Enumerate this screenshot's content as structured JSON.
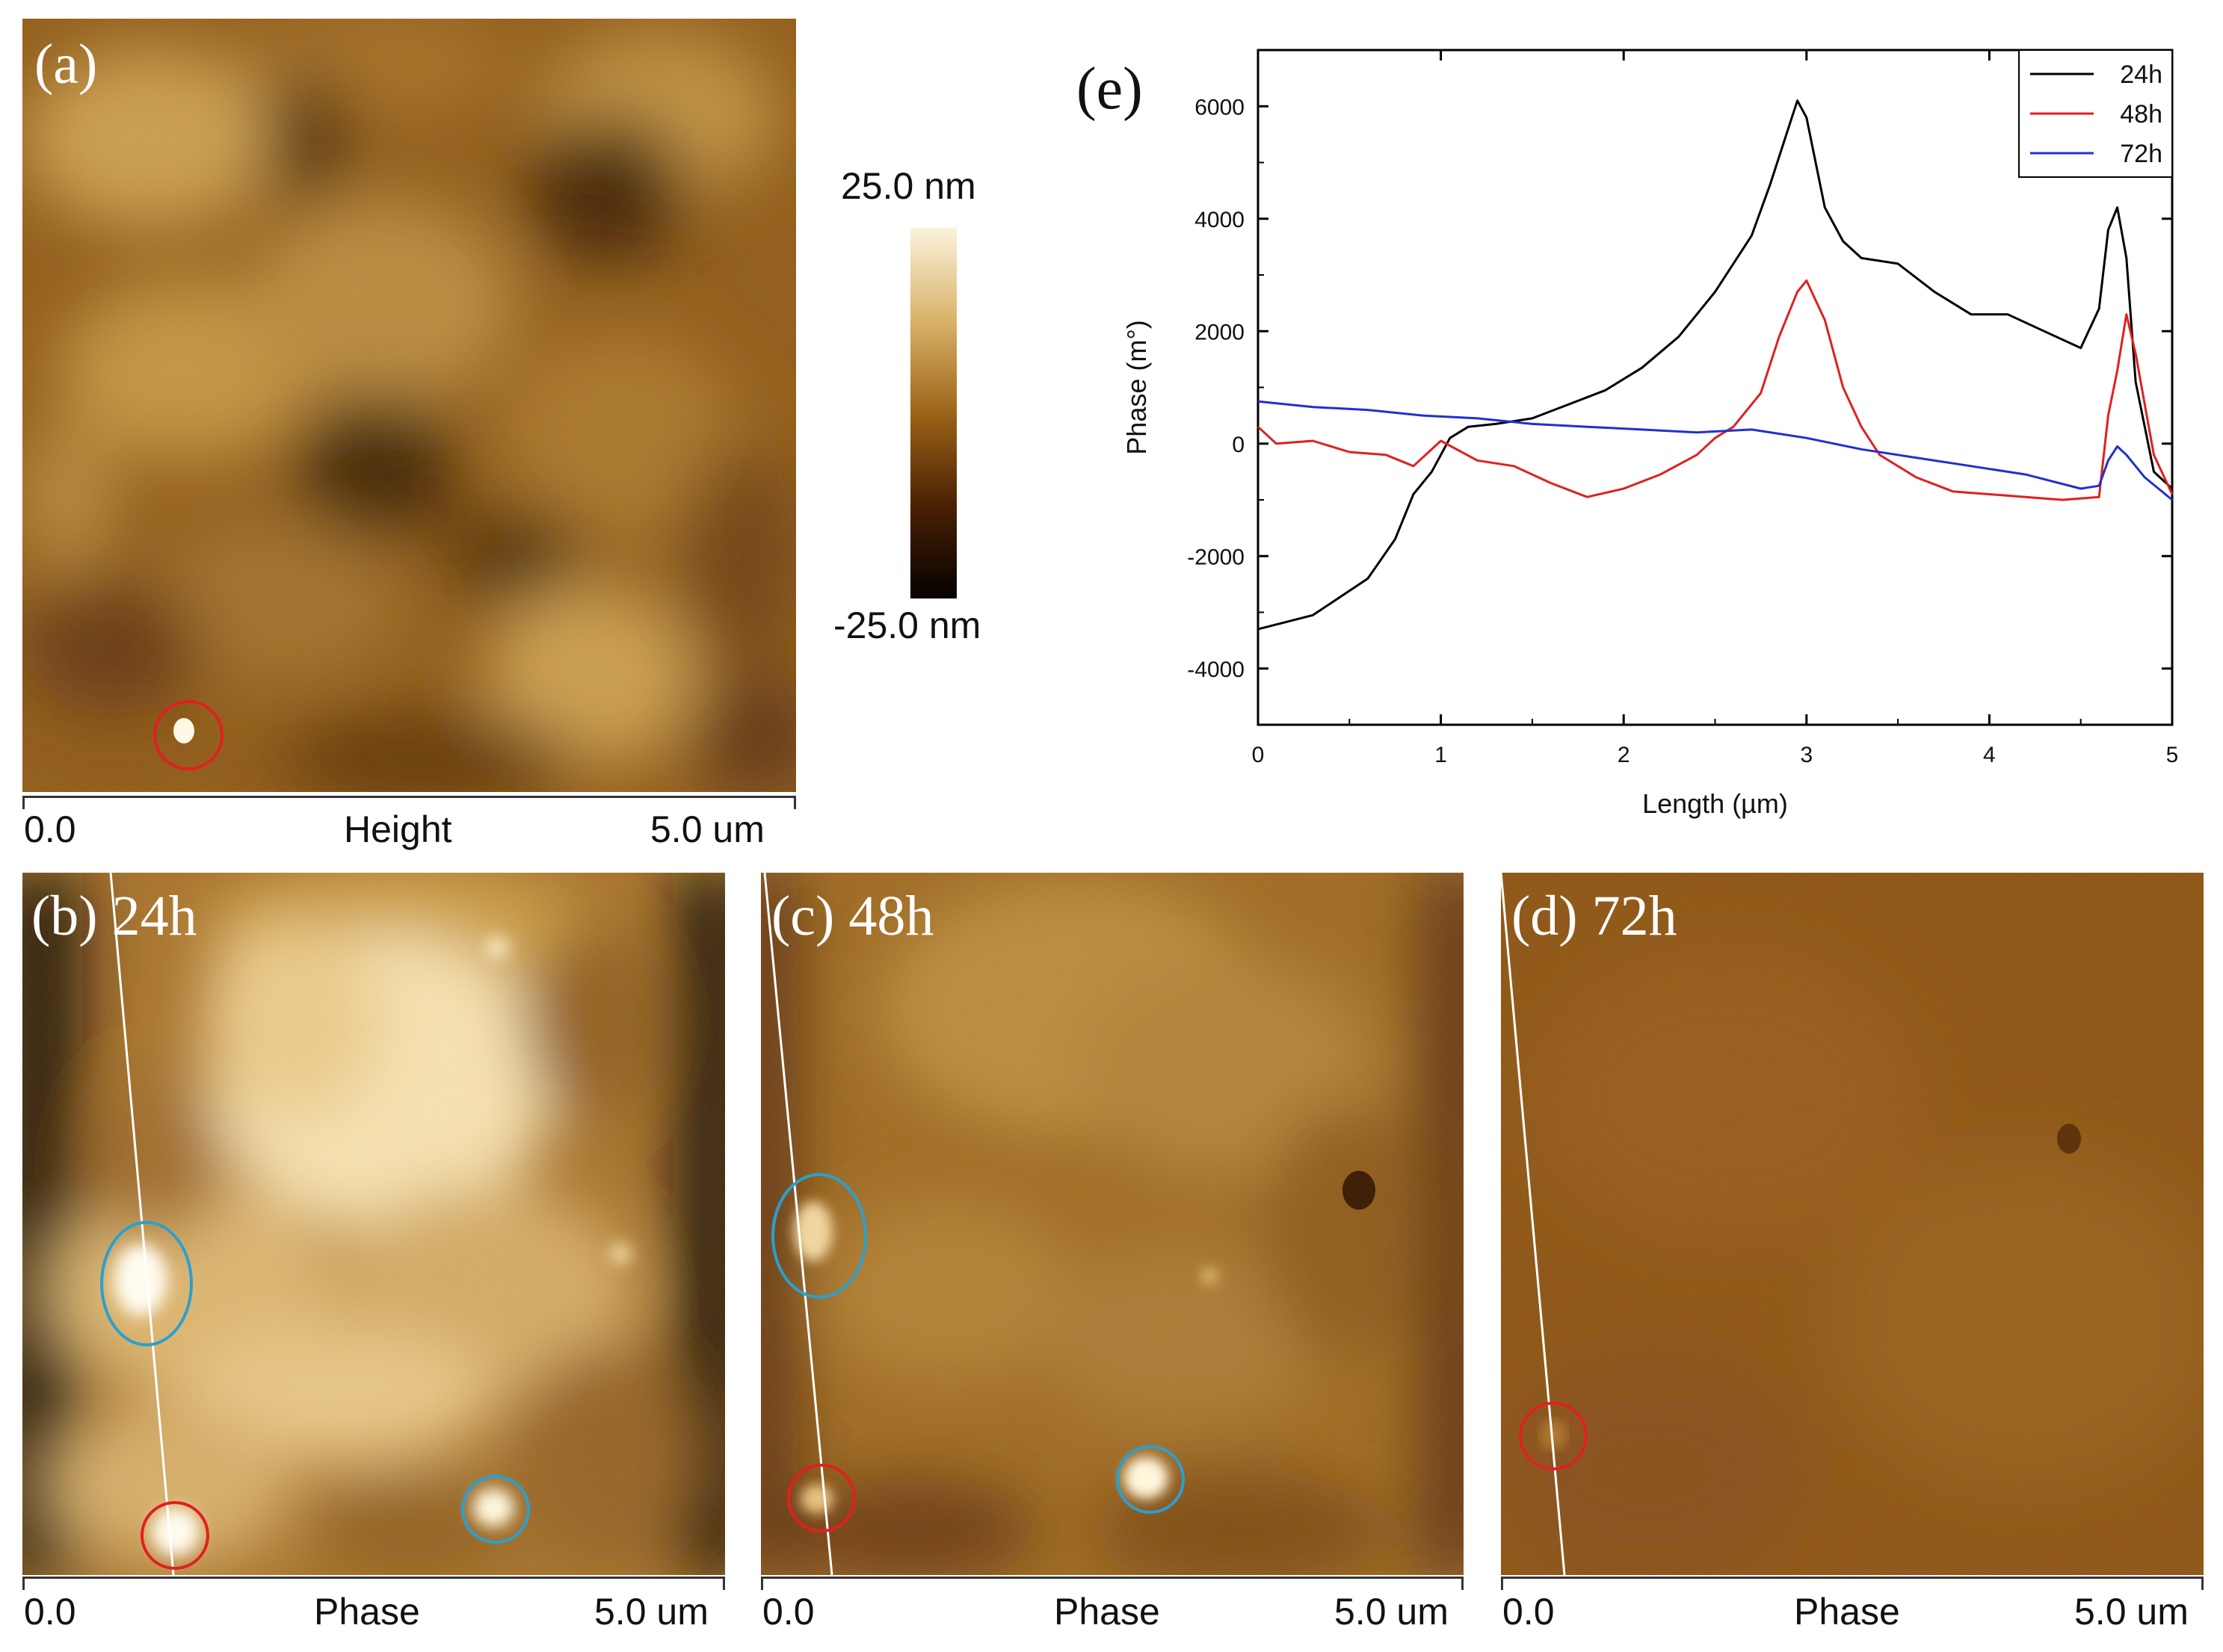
{
  "panel_a": {
    "label": "(a)",
    "axis_start": "0.0",
    "axis_title": "Height",
    "axis_end": "5.0 um"
  },
  "colorbar": {
    "max_label": "25.0 nm",
    "min_label": "-25.0 nm"
  },
  "panel_b": {
    "label": "(b) 24h",
    "axis_start": "0.0",
    "axis_title": "Phase",
    "axis_end": "5.0 um"
  },
  "panel_c": {
    "label": "(c) 48h",
    "axis_start": "0.0",
    "axis_title": "Phase",
    "axis_end": "5.0 um"
  },
  "panel_d": {
    "label": "(d) 72h",
    "axis_start": "0.0",
    "axis_title": "Phase",
    "axis_end": "5.0 um"
  },
  "colors": {
    "afm_dark": "#3a1c05",
    "afm_mid": "#a8701f",
    "afm_light": "#f4e2b4",
    "red_marker": "#e02020",
    "blue_marker": "#2aa0d0",
    "series_24h": "#000000",
    "series_48h": "#e02020",
    "series_72h": "#2030d0"
  },
  "chart_data": {
    "type": "line",
    "panel_label": "(e)",
    "title": "",
    "xlabel": "Length (µm)",
    "ylabel": "Phase (m°)",
    "xlim": [
      0,
      5
    ],
    "ylim": [
      -5000,
      7000
    ],
    "xticks": [
      "0",
      "1",
      "2",
      "3",
      "4",
      "5"
    ],
    "yticks": [
      "-4000",
      "-2000",
      "0",
      "2000",
      "4000",
      "6000"
    ],
    "legend_position": "top-right",
    "series": [
      {
        "name": "24h",
        "color": "#000000",
        "x": [
          0,
          0.3,
          0.6,
          0.75,
          0.85,
          0.95,
          1.05,
          1.15,
          1.3,
          1.5,
          1.7,
          1.9,
          2.1,
          2.3,
          2.5,
          2.7,
          2.8,
          2.9,
          2.95,
          3.0,
          3.1,
          3.2,
          3.3,
          3.5,
          3.7,
          3.9,
          4.1,
          4.3,
          4.5,
          4.6,
          4.65,
          4.7,
          4.75,
          4.8,
          4.9,
          5.0
        ],
        "y": [
          -3300,
          -3050,
          -2400,
          -1700,
          -900,
          -500,
          100,
          300,
          350,
          450,
          700,
          950,
          1350,
          1900,
          2700,
          3700,
          4600,
          5600,
          6100,
          5800,
          4200,
          3600,
          3300,
          3200,
          2700,
          2300,
          2300,
          2000,
          1700,
          2400,
          3800,
          4200,
          3300,
          1100,
          -500,
          -800
        ]
      },
      {
        "name": "48h",
        "color": "#e02020",
        "x": [
          0,
          0.1,
          0.3,
          0.5,
          0.7,
          0.85,
          1.0,
          1.2,
          1.4,
          1.6,
          1.8,
          2.0,
          2.2,
          2.4,
          2.5,
          2.6,
          2.75,
          2.85,
          2.95,
          3.0,
          3.1,
          3.2,
          3.3,
          3.4,
          3.6,
          3.8,
          4.0,
          4.2,
          4.4,
          4.6,
          4.65,
          4.7,
          4.75,
          4.8,
          4.9,
          5.0
        ],
        "y": [
          300,
          0,
          50,
          -150,
          -200,
          -400,
          50,
          -300,
          -400,
          -700,
          -950,
          -800,
          -550,
          -200,
          100,
          300,
          900,
          1900,
          2700,
          2900,
          2200,
          1000,
          300,
          -200,
          -600,
          -850,
          -900,
          -950,
          -1000,
          -950,
          500,
          1300,
          2300,
          1600,
          -200,
          -900
        ]
      },
      {
        "name": "72h",
        "color": "#2030d0",
        "x": [
          0,
          0.3,
          0.6,
          0.9,
          1.2,
          1.5,
          1.8,
          2.1,
          2.4,
          2.7,
          3.0,
          3.3,
          3.6,
          3.9,
          4.2,
          4.5,
          4.6,
          4.65,
          4.7,
          4.75,
          4.85,
          5.0
        ],
        "y": [
          750,
          650,
          600,
          500,
          450,
          350,
          300,
          250,
          200,
          250,
          100,
          -100,
          -250,
          -400,
          -550,
          -800,
          -750,
          -300,
          -50,
          -200,
          -600,
          -1000
        ]
      }
    ]
  }
}
